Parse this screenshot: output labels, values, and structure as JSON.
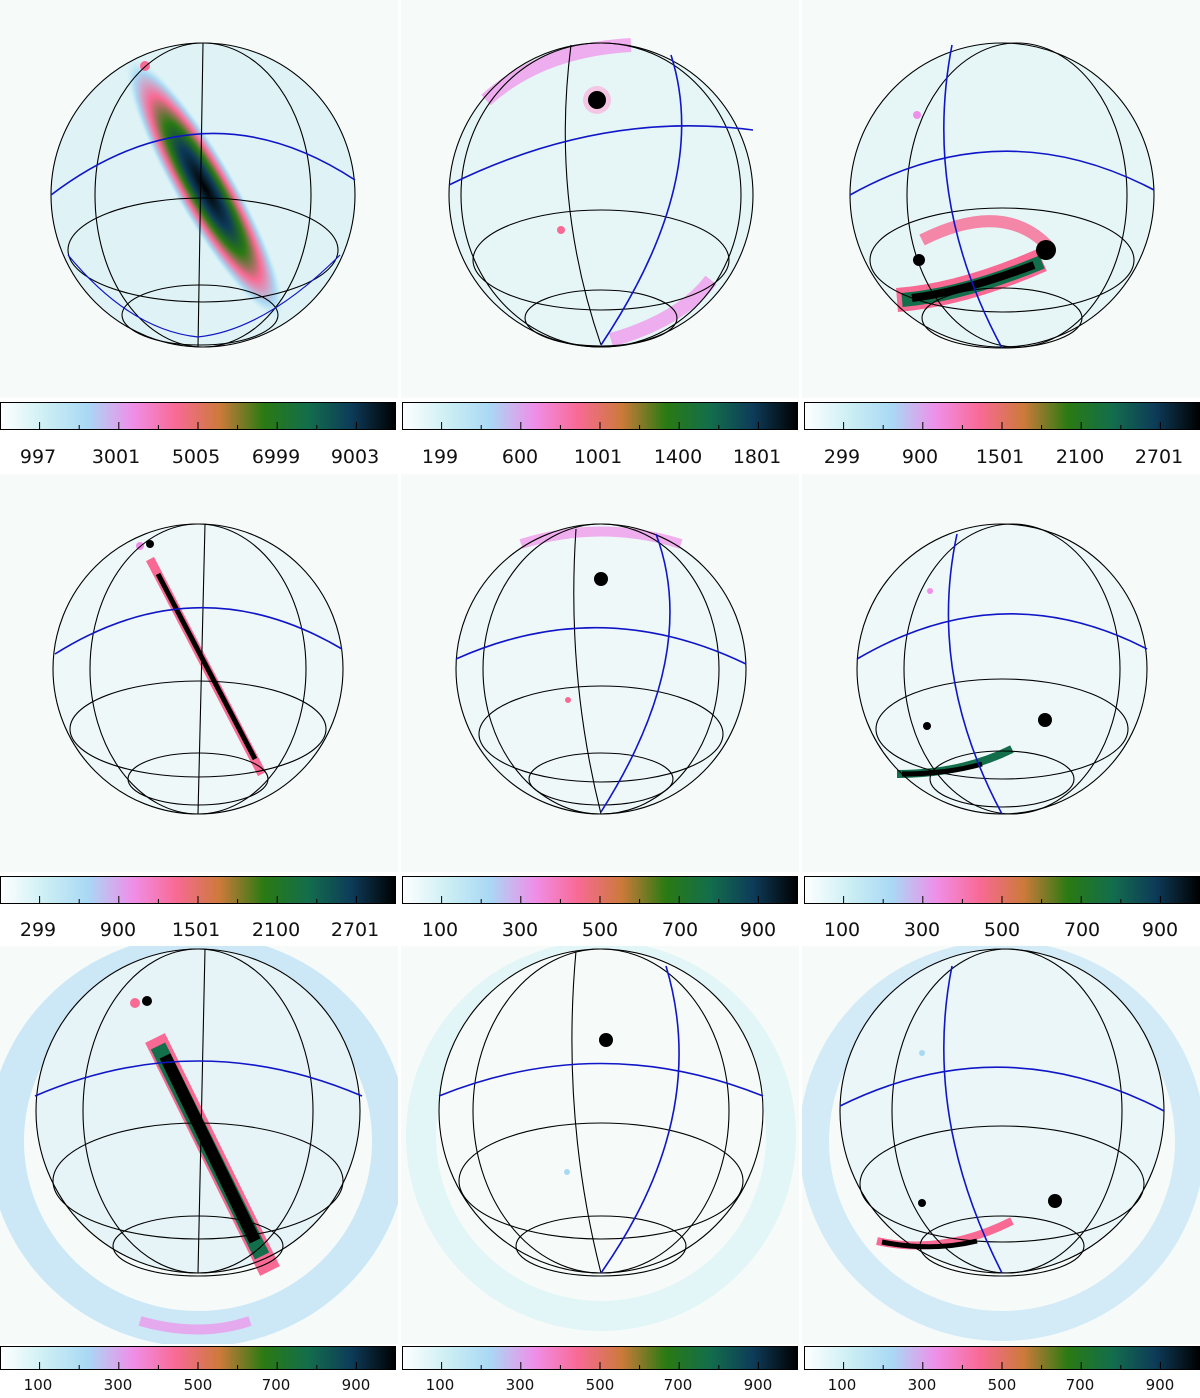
{
  "figure": {
    "rows": [
      {
        "panels": [
          {
            "name": "row1-col1",
            "colorbar_ticks": [
              "997",
              "3001",
              "5005",
              "6999",
              "9003"
            ]
          },
          {
            "name": "row1-col2",
            "colorbar_ticks": [
              "199",
              "600",
              "1001",
              "1400",
              "1801"
            ]
          },
          {
            "name": "row1-col3",
            "colorbar_ticks": [
              "299",
              "900",
              "1501",
              "2100",
              "2701"
            ]
          }
        ]
      },
      {
        "panels": [
          {
            "name": "row2-col1",
            "colorbar_ticks": [
              "299",
              "900",
              "1501",
              "2100",
              "2701"
            ]
          },
          {
            "name": "row2-col2",
            "colorbar_ticks": [
              "100",
              "300",
              "500",
              "700",
              "900"
            ]
          },
          {
            "name": "row2-col3",
            "colorbar_ticks": [
              "100",
              "300",
              "500",
              "700",
              "900"
            ]
          }
        ]
      },
      {
        "panels": [
          {
            "name": "row3-col1",
            "colorbar_ticks": [
              "100",
              "300",
              "500",
              "700",
              "900"
            ]
          },
          {
            "name": "row3-col2",
            "colorbar_ticks": [
              "100",
              "300",
              "500",
              "700",
              "900"
            ]
          },
          {
            "name": "row3-col3",
            "colorbar_ticks": [
              "100",
              "300",
              "500",
              "700",
              "900"
            ]
          }
        ]
      }
    ],
    "colormap": [
      "#ffffff",
      "#cdeff4",
      "#a9d8f4",
      "#ef8fe9",
      "#f86a94",
      "#cc7a3a",
      "#2a7a12",
      "#136e4b",
      "#0d3b59",
      "#000000"
    ],
    "grid_color": "#000000",
    "equator_color": "#1016c8"
  }
}
